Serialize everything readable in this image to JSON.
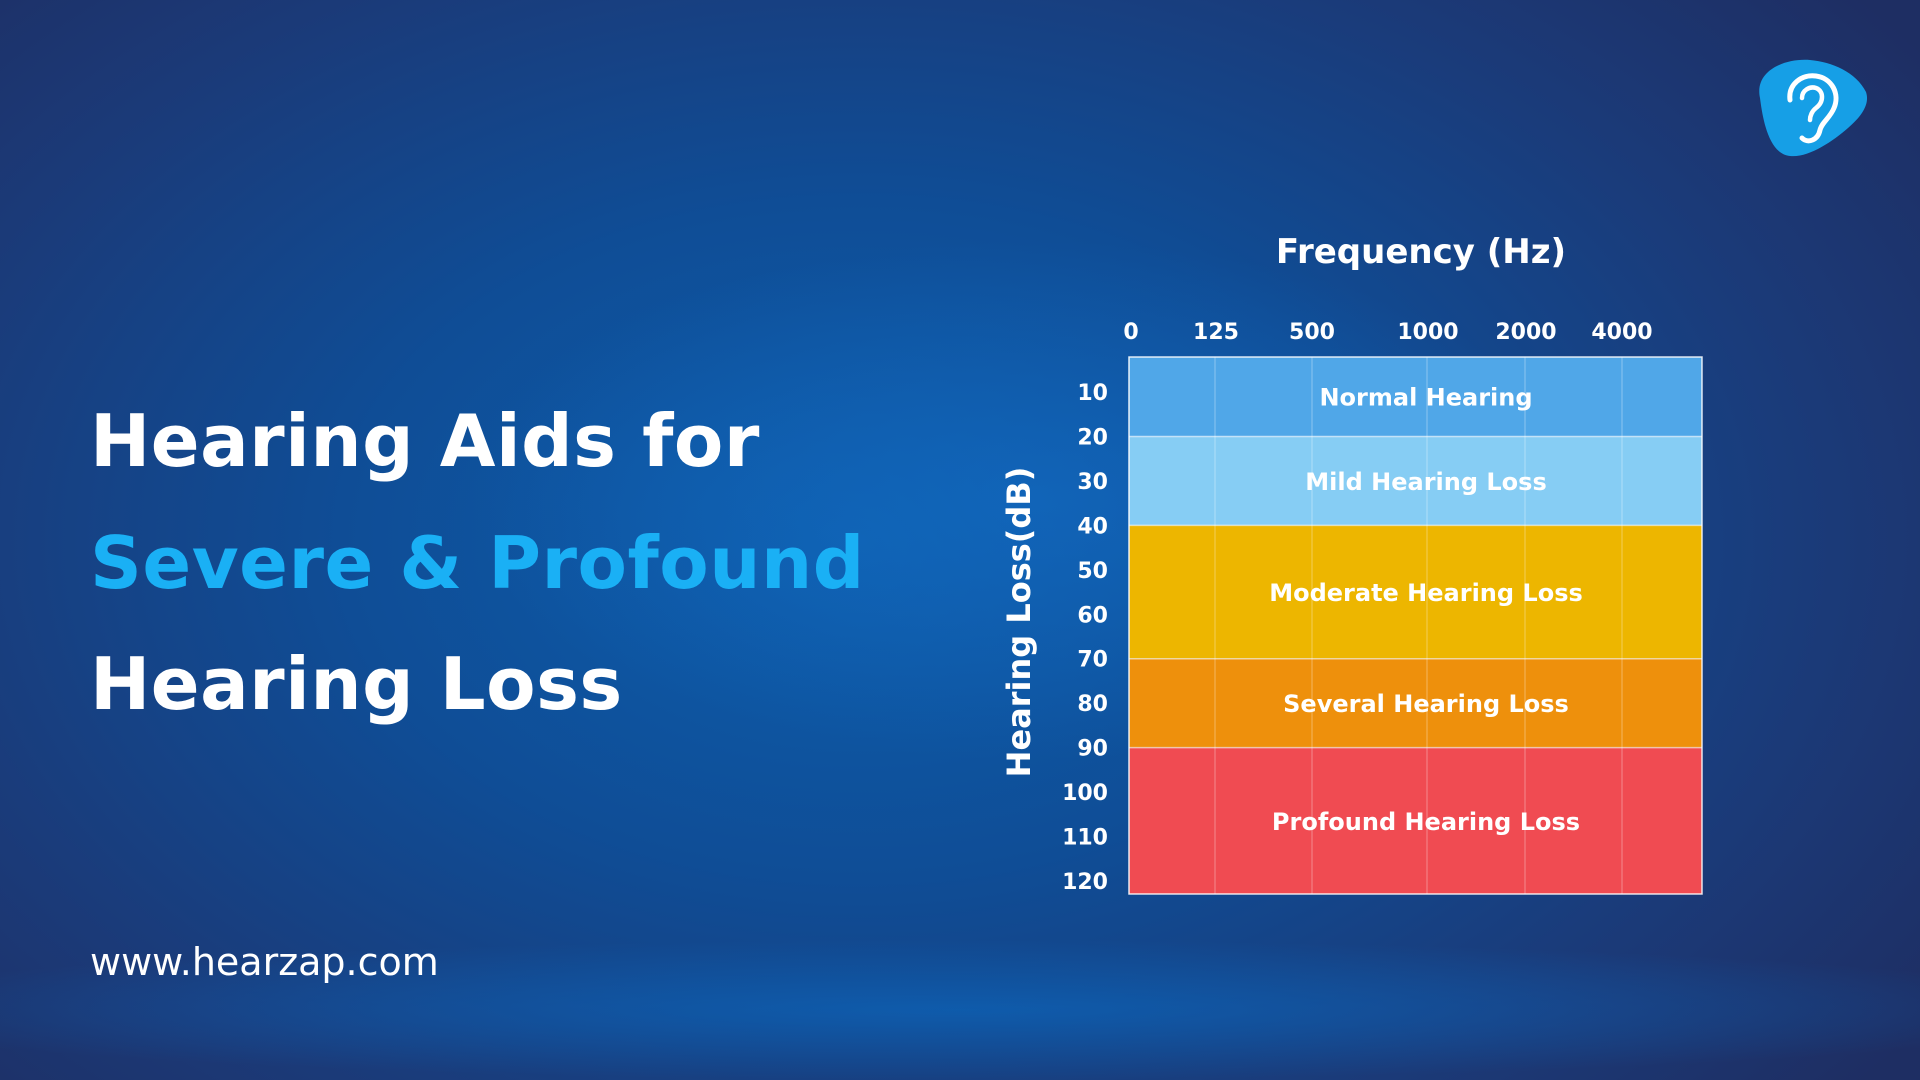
{
  "headline": {
    "line1": "Hearing Aids for",
    "line2": "Severe & Profound",
    "line3": "Hearing Loss"
  },
  "website": "www.hearzap.com",
  "logo_icon": "ear-logo-icon",
  "colors": {
    "accent": "#1ab0f5",
    "normal": "#50a7e8",
    "mild": "#86cdf4",
    "moderate": "#edb600",
    "several": "#ee900c",
    "profound": "#f04b52"
  },
  "chart_data": {
    "type": "table",
    "xlabel": "Frequency (Hz)",
    "ylabel": "Hearing Loss(dB)",
    "x_ticks": [
      "0",
      "125",
      "500",
      "1000",
      "2000",
      "4000"
    ],
    "y_ticks": [
      "10",
      "20",
      "30",
      "40",
      "50",
      "60",
      "70",
      "80",
      "90",
      "100",
      "110",
      "120"
    ],
    "ylim": [
      10,
      120
    ],
    "y_reversed": true,
    "bands": [
      {
        "label": "Normal Hearing",
        "from_db": 10,
        "to_db": 20,
        "color": "#50a7e8"
      },
      {
        "label": "Mild Hearing Loss",
        "from_db": 20,
        "to_db": 40,
        "color": "#86cdf4"
      },
      {
        "label": "Moderate Hearing Loss",
        "from_db": 40,
        "to_db": 70,
        "color": "#edb600"
      },
      {
        "label": "Several Hearing Loss",
        "from_db": 70,
        "to_db": 90,
        "color": "#ee900c"
      },
      {
        "label": "Profound Hearing Loss",
        "from_db": 90,
        "to_db": 120,
        "color": "#f04b52"
      }
    ]
  }
}
